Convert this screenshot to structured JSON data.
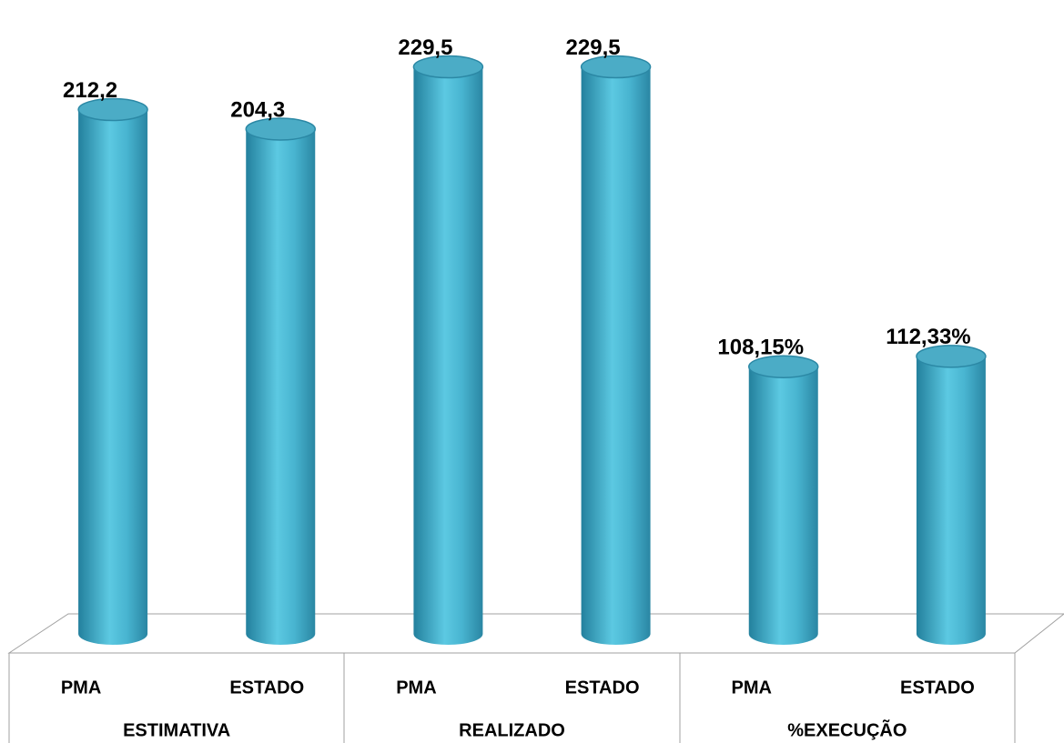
{
  "chart_data": {
    "type": "cylinder",
    "groups": [
      "ESTIMATIVA",
      "REALIZADO",
      "%EXECUÇÃO"
    ],
    "categories": [
      "PMA",
      "ESTADO",
      "PMA",
      "ESTADO",
      "PMA",
      "ESTADO"
    ],
    "values": [
      212.2,
      204.3,
      229.5,
      229.5,
      108.15,
      112.33
    ],
    "value_labels": [
      "212,2",
      "204,3",
      "229,5",
      "229,5",
      "108,15%",
      "112,33%"
    ],
    "color": "#4bacc6",
    "ylim": [
      0,
      240
    ]
  }
}
